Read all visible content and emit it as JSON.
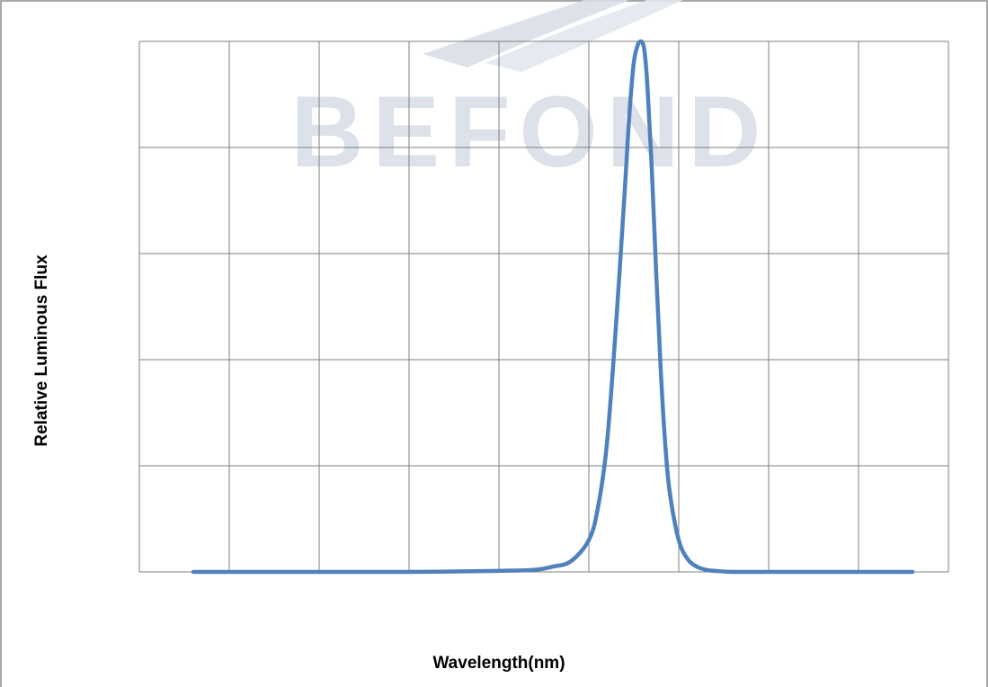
{
  "colors": {
    "series_line": "#4F81BD",
    "grid": "#7F7F7F",
    "frame": "#8C8C8C",
    "watermark": "#D9DEE8",
    "watermark_dark": "#C3CAD8",
    "watermark_accent": "#F0DC8C"
  },
  "watermark": {
    "text": "BEFOND"
  },
  "chart_data": {
    "type": "line",
    "title": "",
    "xlabel": "Wavelength(nm)",
    "ylabel": "Relative Luminous Flux",
    "tick_labels_shown": false,
    "grid": true,
    "legend": "none",
    "grid_divisions": {
      "x": 9,
      "y": 5
    },
    "xlim": [
      0,
      9
    ],
    "ylim": [
      0,
      5
    ],
    "series": [
      {
        "x": [
          0.6,
          1.0,
          2.0,
          3.0,
          4.0,
          4.4,
          4.6,
          4.8,
          5.0,
          5.1,
          5.2,
          5.3,
          5.4,
          5.45,
          5.5,
          5.55,
          5.58,
          5.6,
          5.62,
          5.65,
          5.7,
          5.75,
          5.8,
          5.85,
          5.9,
          6.0,
          6.1,
          6.2,
          6.3,
          6.4,
          6.6,
          7.0,
          8.0,
          8.6
        ],
        "y": [
          0.0,
          0.0,
          0.0,
          0.0,
          0.01,
          0.02,
          0.05,
          0.1,
          0.3,
          0.6,
          1.2,
          2.3,
          3.6,
          4.3,
          4.8,
          4.98,
          5.0,
          4.98,
          4.9,
          4.6,
          3.8,
          2.8,
          1.9,
          1.2,
          0.75,
          0.3,
          0.12,
          0.05,
          0.02,
          0.01,
          0.0,
          0.0,
          0.0,
          0.0
        ]
      }
    ]
  }
}
